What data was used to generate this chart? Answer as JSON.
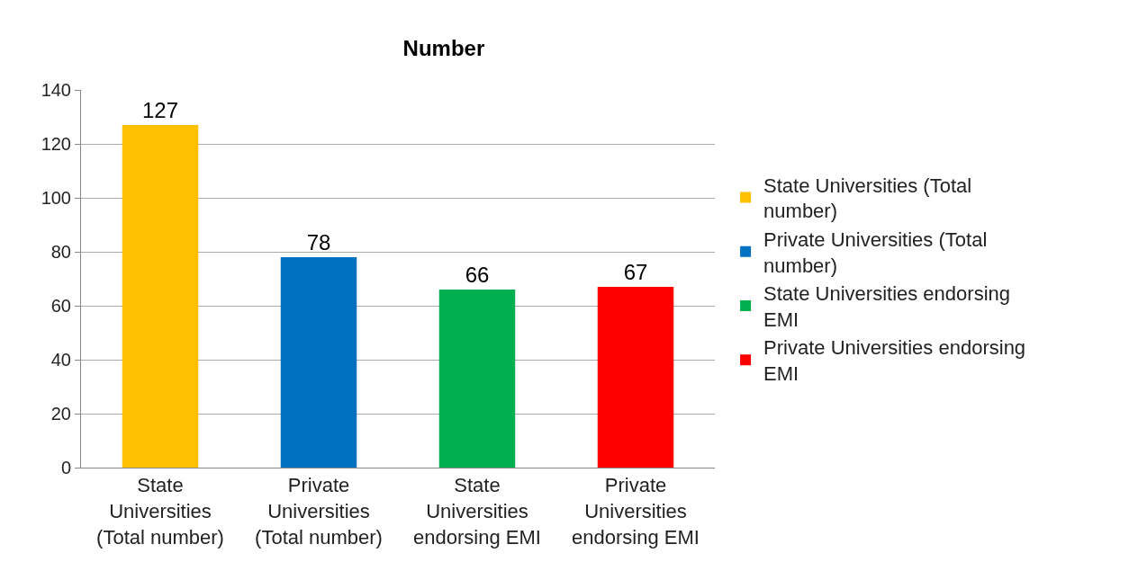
{
  "chart_data": {
    "type": "bar",
    "title": "Number",
    "categories": [
      "State Universities (Total number)",
      "Private Universities (Total number)",
      "State Universities endorsing EMI",
      "Private Universities endorsing EMI"
    ],
    "series": [
      {
        "name": "State Universities (Total number)",
        "color": "#ffc000",
        "values": [
          127,
          null,
          null,
          null
        ]
      },
      {
        "name": "Private Universities (Total number)",
        "color": "#0070c0",
        "values": [
          null,
          78,
          null,
          null
        ]
      },
      {
        "name": "State Universities endorsing EMI",
        "color": "#00b050",
        "values": [
          null,
          null,
          66,
          null
        ]
      },
      {
        "name": "Private Universities endorsing EMI",
        "color": "#ff0000",
        "values": [
          null,
          null,
          null,
          67
        ]
      }
    ],
    "ylim": [
      0,
      140
    ],
    "yticks": [
      0,
      20,
      40,
      60,
      80,
      100,
      120,
      140
    ],
    "grid": "y",
    "legend": "right",
    "data_labels": true
  }
}
